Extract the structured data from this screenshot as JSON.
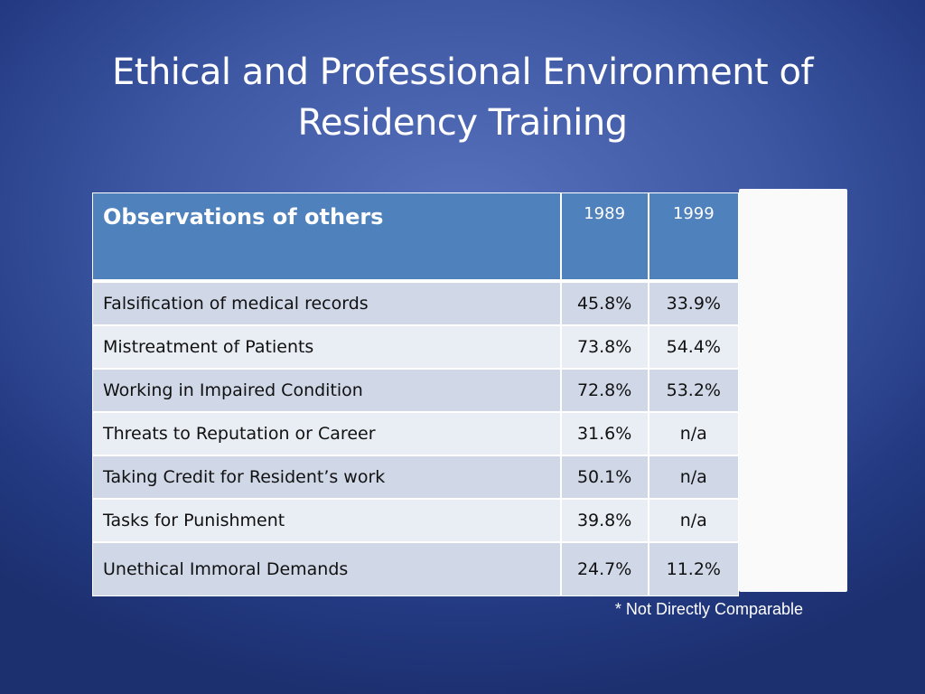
{
  "slide": {
    "title_line1": "Ethical and Professional Environment of",
    "title_line2": "Residency Training"
  },
  "table": {
    "header": {
      "label": "Observations of others",
      "year1": "1989",
      "year2": "1999"
    },
    "rows": [
      {
        "label": "Falsification of medical records",
        "v1989": "45.8%",
        "v1999": "33.9%"
      },
      {
        "label": "Mistreatment of Patients",
        "v1989": "73.8%",
        "v1999": "54.4%"
      },
      {
        "label": "Working in Impaired Condition",
        "v1989": "72.8%",
        "v1999": "53.2%"
      },
      {
        "label": "Threats to Reputation or Career",
        "v1989": "31.6%",
        "v1999": "n/a"
      },
      {
        "label": "Taking Credit for Resident’s work",
        "v1989": "50.1%",
        "v1999": "n/a"
      },
      {
        "label": "Tasks for Punishment",
        "v1989": "39.8%",
        "v1999": "n/a"
      },
      {
        "label": "Unethical Immoral Demands",
        "v1989": "24.7%",
        "v1999": "11.2%"
      }
    ]
  },
  "footnote": "* Not Directly Comparable",
  "colors": {
    "background": "#3e58a4",
    "header_fill": "#4f81bd",
    "row_odd": "#d0d8e8",
    "row_even": "#e9edf4"
  }
}
